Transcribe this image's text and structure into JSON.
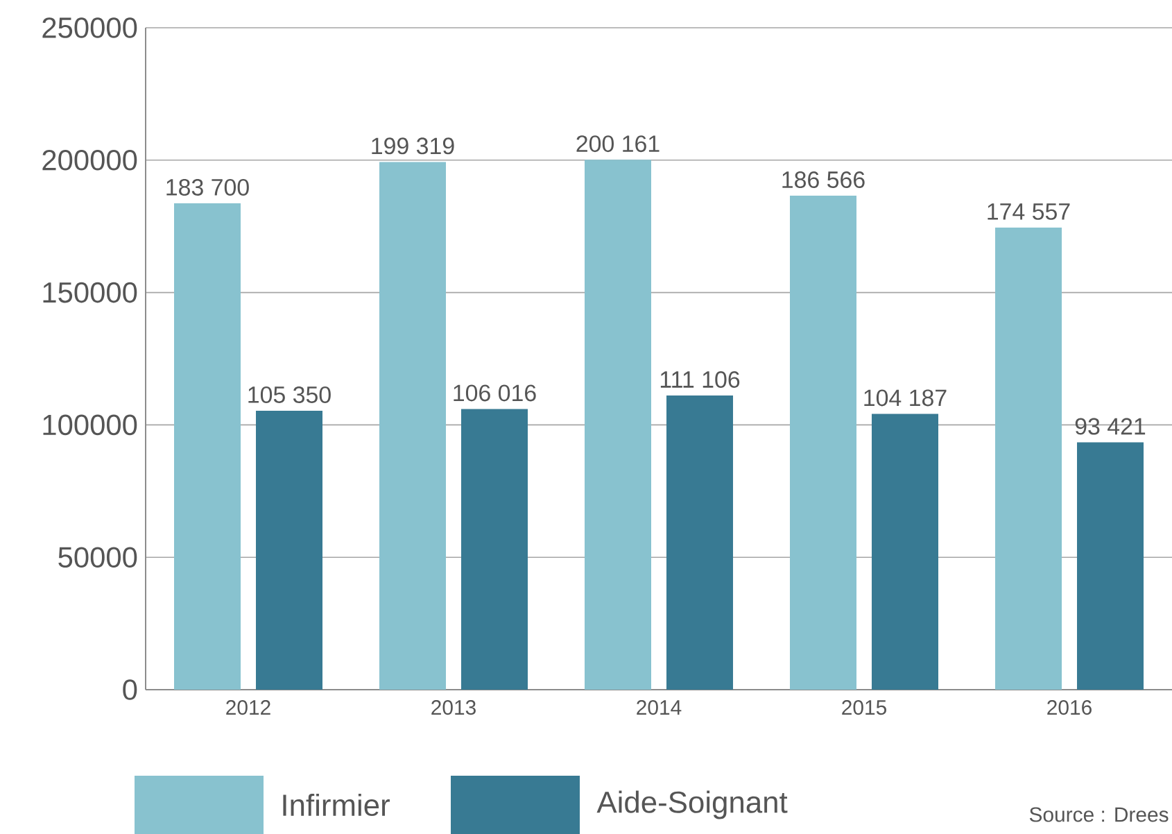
{
  "chart_data": {
    "type": "bar",
    "categories": [
      "2012",
      "2013",
      "2014",
      "2015",
      "2016"
    ],
    "series": [
      {
        "name": "Infirmier",
        "color": "#88c2cf",
        "values": [
          183700,
          199319,
          200161,
          186566,
          174557
        ],
        "value_labels": [
          "183 700",
          "199 319",
          "200 161",
          "186 566",
          "174 557"
        ]
      },
      {
        "name": "Aide-Soignant",
        "color": "#387a93",
        "values": [
          105350,
          106016,
          111106,
          104187,
          93421
        ],
        "value_labels": [
          "105 350",
          "106 016",
          "111 106",
          "104 187",
          "93 421"
        ]
      }
    ],
    "ylim": [
      0,
      250000
    ],
    "yticks": [
      0,
      50000,
      100000,
      150000,
      200000,
      250000
    ],
    "grid": "y",
    "legend": "bottom left",
    "annotations": [
      "Source : Drees"
    ]
  }
}
